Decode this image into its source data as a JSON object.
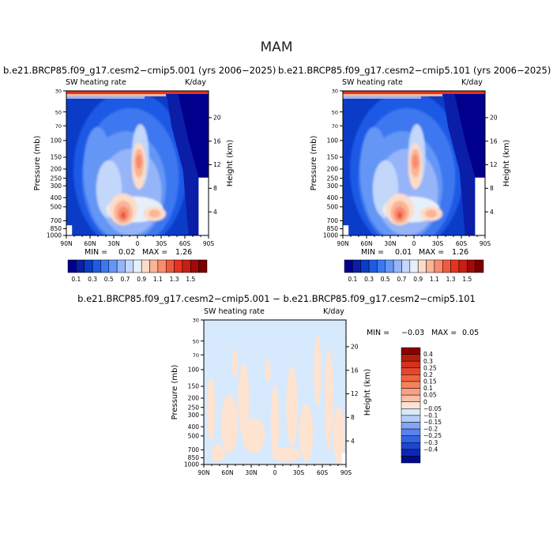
{
  "figure": {
    "title": "MAM"
  },
  "chart_data": [
    {
      "type": "heatmap",
      "title": "b.e21.BRCP85.f09_g17.cesm2−cmip5.001 (yrs 2006−2025)",
      "variable": "SW heating rate",
      "units": "K/day",
      "ylabel": "Pressure (mb)",
      "ylabel_right": "Height (km)",
      "x_ticks": [
        "90N",
        "60N",
        "30N",
        "0",
        "30S",
        "60S",
        "90S"
      ],
      "y_ticks": [
        "30",
        "50",
        "70",
        "100",
        "150",
        "200",
        "250",
        "300",
        "400",
        "500",
        "700",
        "850",
        "1000"
      ],
      "height_ticks": [
        "20",
        "16",
        "12",
        "8",
        "4"
      ],
      "min_label": "MIN =",
      "min": "0.02",
      "max_label": "MAX =",
      "max": "1.26",
      "colorbar_labels": [
        "0.1",
        "0.3",
        "0.5",
        "0.7",
        "0.9",
        "1.1",
        "1.3",
        "1.5"
      ],
      "colorbar_colors": [
        "#00008c",
        "#0a1ea8",
        "#0a3cc8",
        "#1e5ae6",
        "#3c78f0",
        "#6496f5",
        "#96b4f8",
        "#c3d7fa",
        "#e6f0fa",
        "#fcdcc8",
        "#fab496",
        "#f78c6e",
        "#f05a3c",
        "#e6321e",
        "#c81e14",
        "#a00a0a",
        "#780000"
      ],
      "ylim": [
        1000,
        30
      ]
    },
    {
      "type": "heatmap",
      "title": "b.e21.BRCP85.f09_g17.cesm2−cmip5.101 (yrs 2006−2025)",
      "variable": "SW heating rate",
      "units": "K/day",
      "ylabel": "Pressure (mb)",
      "ylabel_right": "Height (km)",
      "x_ticks": [
        "90N",
        "60N",
        "30N",
        "0",
        "30S",
        "60S",
        "90S"
      ],
      "y_ticks": [
        "30",
        "50",
        "70",
        "100",
        "150",
        "200",
        "250",
        "300",
        "400",
        "500",
        "700",
        "850",
        "1000"
      ],
      "height_ticks": [
        "20",
        "16",
        "12",
        "8",
        "4"
      ],
      "min_label": "MIN =",
      "min": "0.01",
      "max_label": "MAX =",
      "max": "1.26",
      "ylim": [
        1000,
        30
      ]
    },
    {
      "type": "heatmap",
      "title": "b.e21.BRCP85.f09_g17.cesm2−cmip5.001 − b.e21.BRCP85.f09_g17.cesm2−cmip5.101",
      "variable": "SW heating rate",
      "units": "K/day",
      "ylabel": "Pressure (mb)",
      "ylabel_right": "Height (km)",
      "x_ticks": [
        "90N",
        "60N",
        "30N",
        "0",
        "30S",
        "60S",
        "90S"
      ],
      "y_ticks": [
        "30",
        "50",
        "70",
        "100",
        "150",
        "200",
        "250",
        "300",
        "400",
        "500",
        "700",
        "850",
        "1000"
      ],
      "height_ticks": [
        "20",
        "16",
        "12",
        "8",
        "4"
      ],
      "min_label": "MIN =",
      "min": "−0.03",
      "max_label": "MAX =",
      "max": "0.05",
      "colorbar_labels": [
        "0.4",
        "0.3",
        "0.25",
        "0.2",
        "0.15",
        "0.1",
        "0.05",
        "0",
        "−0.05",
        "−0.1",
        "−0.15",
        "−0.2",
        "−0.25",
        "−0.3",
        "−0.4"
      ],
      "colorbar_colors": [
        "#8c0000",
        "#b41e0a",
        "#d2321e",
        "#e6462d",
        "#f0643c",
        "#f5825a",
        "#faa082",
        "#fcbea5",
        "#fde3d0",
        "#d7e9fc",
        "#b4cdfa",
        "#82a5f5",
        "#5a82f0",
        "#3264e6",
        "#1e46d2",
        "#0a28b4",
        "#000a8c"
      ],
      "ylim": [
        1000,
        30
      ]
    }
  ]
}
